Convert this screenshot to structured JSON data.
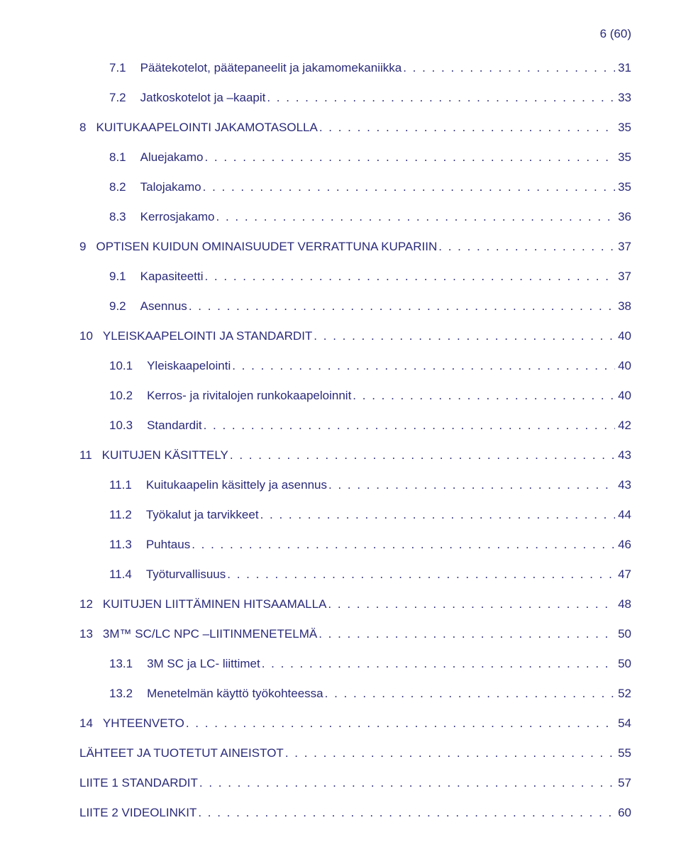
{
  "page_indicator": "6 (60)",
  "colors": {
    "text": "#2a2a7a",
    "background": "#ffffff"
  },
  "font": {
    "family": "Verdana",
    "size_pt": 13
  },
  "toc": [
    {
      "level": 2,
      "num": "7.1",
      "title": "Päätekotelot, päätepaneelit ja jakamomekaniikka",
      "page": "31"
    },
    {
      "level": 2,
      "num": "7.2",
      "title": "Jatkoskotelot ja –kaapit",
      "page": "33"
    },
    {
      "level": 0,
      "num": "8",
      "title": "KUITUKAAPELOINTI JAKAMOTASOLLA",
      "page": "35"
    },
    {
      "level": 1,
      "num": "8.1",
      "title": "Aluejakamo",
      "page": "35"
    },
    {
      "level": 1,
      "num": "8.2",
      "title": "Talojakamo",
      "page": "35"
    },
    {
      "level": 1,
      "num": "8.3",
      "title": "Kerrosjakamo",
      "page": "36"
    },
    {
      "level": 0,
      "num": "9",
      "title": "OPTISEN KUIDUN OMINAISUUDET VERRATTUNA KUPARIIN",
      "page": "37"
    },
    {
      "level": 1,
      "num": "9.1",
      "title": "Kapasiteetti",
      "page": "37"
    },
    {
      "level": 1,
      "num": "9.2",
      "title": "Asennus",
      "page": "38"
    },
    {
      "level": 0,
      "num": "10",
      "title": "YLEISKAAPELOINTI JA STANDARDIT",
      "page": "40"
    },
    {
      "level": 1,
      "num": "10.1",
      "title": "Yleiskaapelointi",
      "page": "40"
    },
    {
      "level": 1,
      "num": "10.2",
      "title": "Kerros- ja rivitalojen runkokaapeloinnit",
      "page": "40"
    },
    {
      "level": 1,
      "num": "10.3",
      "title": "Standardit",
      "page": "42"
    },
    {
      "level": 0,
      "num": "11",
      "title": "KUITUJEN KÄSITTELY",
      "page": "43"
    },
    {
      "level": 1,
      "num": "11.1",
      "title": "Kuitukaapelin käsittely ja asennus",
      "page": "43"
    },
    {
      "level": 1,
      "num": "11.2",
      "title": "Työkalut ja tarvikkeet",
      "page": "44"
    },
    {
      "level": 1,
      "num": "11.3",
      "title": "Puhtaus",
      "page": "46"
    },
    {
      "level": 1,
      "num": "11.4",
      "title": "Työturvallisuus",
      "page": "47"
    },
    {
      "level": 0,
      "num": "12",
      "title": "KUITUJEN LIITTÄMINEN HITSAAMALLA",
      "page": "48"
    },
    {
      "level": 0,
      "num": "13",
      "title": "3M™ SC/LC NPC –LIITINMENETELMÄ",
      "page": "50"
    },
    {
      "level": 1,
      "num": "13.1",
      "title": "3M SC ja LC- liittimet",
      "page": "50"
    },
    {
      "level": 1,
      "num": "13.2",
      "title": "Menetelmän käyttö työkohteessa",
      "page": "52"
    },
    {
      "level": 0,
      "num": "14",
      "title": "YHTEENVETO",
      "page": "54"
    },
    {
      "level": 0,
      "num": "",
      "title": "LÄHTEET JA TUOTETUT AINEISTOT",
      "page": "55"
    },
    {
      "level": 0,
      "num": "",
      "title": "LIITE 1 STANDARDIT",
      "page": "57"
    },
    {
      "level": 0,
      "num": "",
      "title": "LIITE 2 VIDEOLINKIT",
      "page": "60"
    }
  ]
}
